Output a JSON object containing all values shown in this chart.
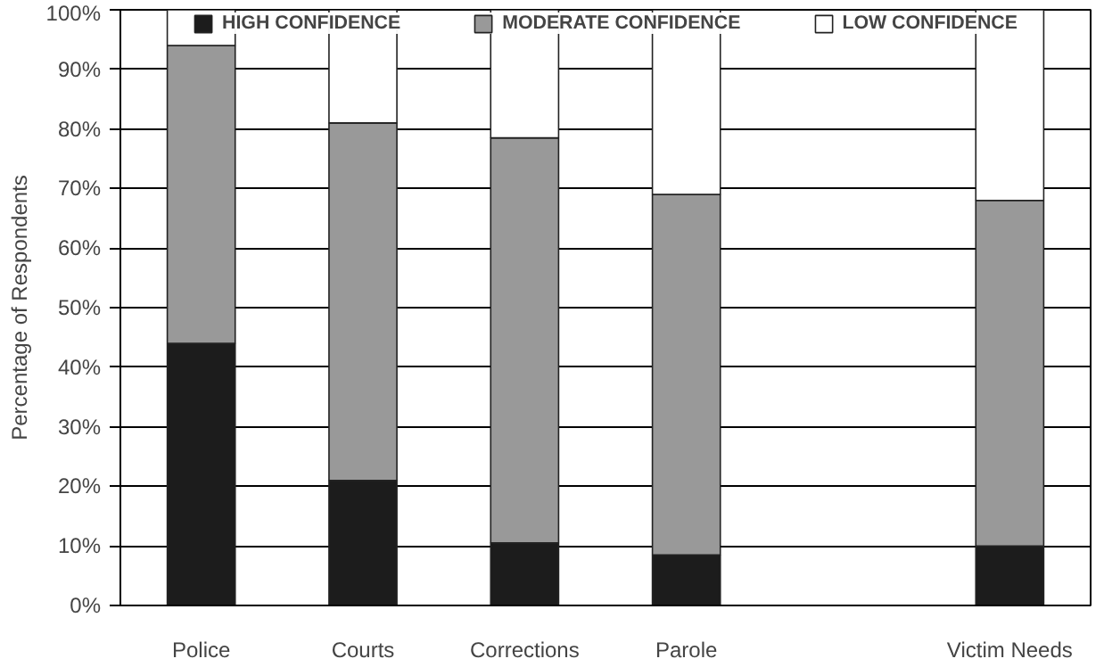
{
  "chart_data": {
    "type": "bar",
    "stacked": true,
    "ylabel": "Percentage of Respondents",
    "categories": [
      "Police",
      "Courts",
      "Corrections",
      "Parole",
      null,
      "Victim Needs"
    ],
    "series": [
      {
        "name": "HIGH CONFIDENCE",
        "color": "#1c1c1c",
        "values": [
          44,
          21,
          10.5,
          8.5,
          null,
          10
        ]
      },
      {
        "name": "MODERATE CONFIDENCE",
        "color": "#999999",
        "values": [
          50,
          60,
          68,
          60.5,
          null,
          58
        ]
      },
      {
        "name": "LOW CONFIDENCE",
        "color": "#ffffff",
        "values": [
          6,
          19,
          21.5,
          31,
          null,
          32
        ]
      }
    ],
    "ylim": [
      0,
      100
    ],
    "yticks": [
      {
        "value": 0,
        "label": "0%"
      },
      {
        "value": 10,
        "label": "10%"
      },
      {
        "value": 20,
        "label": "20%"
      },
      {
        "value": 30,
        "label": "30%"
      },
      {
        "value": 40,
        "label": "40%"
      },
      {
        "value": 50,
        "label": "50%"
      },
      {
        "value": 60,
        "label": "60%"
      },
      {
        "value": 70,
        "label": "70%"
      },
      {
        "value": 80,
        "label": "80%"
      },
      {
        "value": 90,
        "label": "90%"
      },
      {
        "value": 100,
        "label": "100%"
      }
    ],
    "grid": "y",
    "legend": "top"
  }
}
